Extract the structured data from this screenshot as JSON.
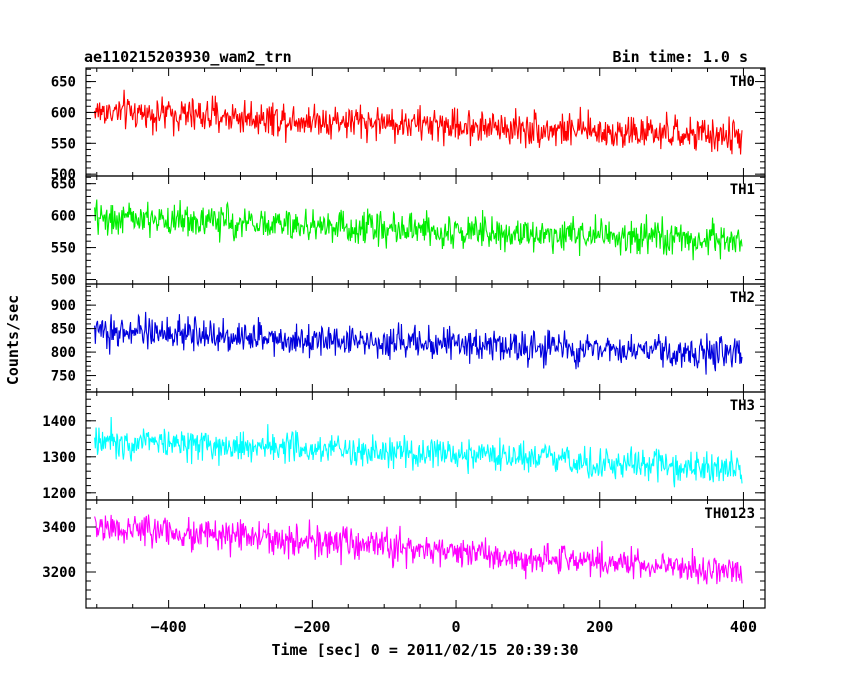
{
  "header": {
    "title": "ae110215203930_wam2_trn",
    "bin_time": "Bin time: 1.0 s"
  },
  "chart_data": {
    "type": "line",
    "xlabel": "Time [sec] 0 = 2011/02/15 20:39:30",
    "ylabel": "Counts/sec",
    "xlim": [
      -515,
      430
    ],
    "data_x_range": [
      -503,
      398
    ],
    "bin_seconds": 1.0,
    "x_ticks": [
      -400,
      -200,
      0,
      200,
      400
    ],
    "x_tick_labels": [
      "−400",
      "−200",
      "0",
      "200",
      "400"
    ],
    "panels": [
      {
        "label": "TH0",
        "color": "#ff0000",
        "ylim": [
          497,
          672
        ],
        "y_ticks": [
          500,
          550,
          600,
          650
        ],
        "trend_start": 602,
        "trend_end": 560,
        "noise_amplitude": 30
      },
      {
        "label": "TH1",
        "color": "#00ee00",
        "ylim": [
          493,
          662
        ],
        "y_ticks": [
          500,
          550,
          600,
          650
        ],
        "trend_start": 597,
        "trend_end": 560,
        "noise_amplitude": 28
      },
      {
        "label": "TH2",
        "color": "#0000dd",
        "ylim": [
          715,
          945
        ],
        "y_ticks": [
          750,
          800,
          850,
          900
        ],
        "trend_start": 845,
        "trend_end": 795,
        "noise_amplitude": 36
      },
      {
        "label": "TH3",
        "color": "#00ffff",
        "ylim": [
          1180,
          1480
        ],
        "y_ticks": [
          1200,
          1300,
          1400
        ],
        "trend_start": 1350,
        "trend_end": 1265,
        "noise_amplitude": 48
      },
      {
        "label": "TH0123",
        "color": "#ff00ff",
        "ylim": [
          3040,
          3520
        ],
        "y_ticks": [
          3200,
          3400
        ],
        "trend_start": 3400,
        "trend_end": 3200,
        "noise_amplitude": 75
      }
    ]
  }
}
